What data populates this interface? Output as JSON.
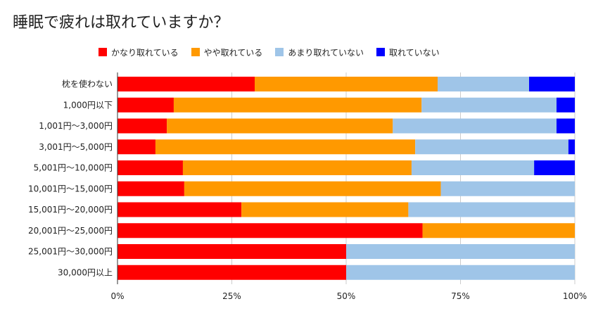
{
  "chart_data": {
    "type": "bar",
    "orientation": "horizontal",
    "stacked": "percent",
    "title": "睡眠で疲れは取れていますか？",
    "xlabel": "",
    "ylabel": "",
    "categories": [
      "枕を使わない",
      "1,000円以下",
      "1,001円～3,000円",
      "3,001円～5,000円",
      "5,001円～10,000円",
      "10,001円～15,000円",
      "15,001円～20,000円",
      "20,001円～25,000円",
      "25,001円～30,000円",
      "30,000円以上"
    ],
    "series": [
      {
        "name": "かなり取れている",
        "color": "#ff0000",
        "values": [
          30,
          12.3,
          10.8,
          8.3,
          14.3,
          14.6,
          27.1,
          66.7,
          50,
          50
        ]
      },
      {
        "name": "やや取れている",
        "color": "#ff9900",
        "values": [
          40,
          54.2,
          49.4,
          56.8,
          50.0,
          56.1,
          36.5,
          33.3,
          0,
          0
        ]
      },
      {
        "name": "あまり取れていない",
        "color": "#9fc5e8",
        "values": [
          20,
          29.5,
          35.8,
          33.5,
          26.8,
          29.3,
          36.4,
          0,
          50,
          50
        ]
      },
      {
        "name": "取れていない",
        "color": "#0000ff",
        "values": [
          10,
          4.0,
          4.0,
          1.4,
          8.9,
          0,
          0,
          0,
          0,
          0
        ]
      }
    ],
    "xlim": [
      0,
      100
    ],
    "xticks": [
      "0%",
      "25%",
      "50%",
      "75%",
      "100%"
    ],
    "legend": "top",
    "grid": true
  }
}
